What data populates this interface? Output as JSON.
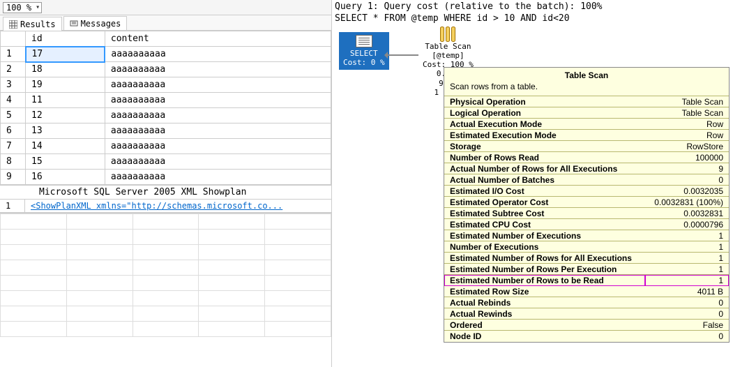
{
  "zoom": {
    "value": "100 %"
  },
  "tabs": {
    "results": "Results",
    "messages": "Messages"
  },
  "columns": [
    "id",
    "content"
  ],
  "rows": [
    {
      "n": "1",
      "id": "17",
      "content": "aaaaaaaaaa"
    },
    {
      "n": "2",
      "id": "18",
      "content": "aaaaaaaaaa"
    },
    {
      "n": "3",
      "id": "19",
      "content": "aaaaaaaaaa"
    },
    {
      "n": "4",
      "id": "11",
      "content": "aaaaaaaaaa"
    },
    {
      "n": "5",
      "id": "12",
      "content": "aaaaaaaaaa"
    },
    {
      "n": "6",
      "id": "13",
      "content": "aaaaaaaaaa"
    },
    {
      "n": "7",
      "id": "14",
      "content": "aaaaaaaaaa"
    },
    {
      "n": "8",
      "id": "15",
      "content": "aaaaaaaaaa"
    },
    {
      "n": "9",
      "id": "16",
      "content": "aaaaaaaaaa"
    }
  ],
  "showplan": {
    "header": "Microsoft SQL Server 2005 XML Showplan",
    "rownum": "1",
    "link": "<ShowPlanXML xmlns=\"http://schemas.microsoft.co..."
  },
  "queryHeader": {
    "line1": "Query 1: Query cost (relative to the batch): 100%",
    "line2": "SELECT * FROM @temp WHERE id > 10 AND id<20"
  },
  "planNodes": {
    "select": {
      "label": "SELECT",
      "cost": "Cost: 0 %"
    },
    "scan": {
      "label": "Table Scan",
      "target": "[@temp]",
      "cost": "Cost: 100 %",
      "s1": "0.02…",
      "s2": "9 o…",
      "s3": "1 (90…"
    }
  },
  "tooltip": {
    "title": "Table Scan",
    "desc": "Scan rows from a table.",
    "props": [
      {
        "k": "Physical Operation",
        "v": "Table Scan"
      },
      {
        "k": "Logical Operation",
        "v": "Table Scan"
      },
      {
        "k": "Actual Execution Mode",
        "v": "Row"
      },
      {
        "k": "Estimated Execution Mode",
        "v": "Row"
      },
      {
        "k": "Storage",
        "v": "RowStore"
      },
      {
        "k": "Number of Rows Read",
        "v": "100000"
      },
      {
        "k": "Actual Number of Rows for All Executions",
        "v": "9"
      },
      {
        "k": "Actual Number of Batches",
        "v": "0"
      },
      {
        "k": "Estimated I/O Cost",
        "v": "0.0032035"
      },
      {
        "k": "Estimated Operator Cost",
        "v": "0.0032831 (100%)"
      },
      {
        "k": "Estimated Subtree Cost",
        "v": "0.0032831"
      },
      {
        "k": "Estimated CPU Cost",
        "v": "0.0000796"
      },
      {
        "k": "Estimated Number of Executions",
        "v": "1"
      },
      {
        "k": "Number of Executions",
        "v": "1"
      },
      {
        "k": "Estimated Number of Rows for All Executions",
        "v": "1"
      },
      {
        "k": "Estimated Number of Rows Per Execution",
        "v": "1"
      },
      {
        "k": "Estimated Number of Rows to be Read",
        "v": "1",
        "hl": true
      },
      {
        "k": "Estimated Row Size",
        "v": "4011 B"
      },
      {
        "k": "Actual Rebinds",
        "v": "0"
      },
      {
        "k": "Actual Rewinds",
        "v": "0"
      },
      {
        "k": "Ordered",
        "v": "False"
      },
      {
        "k": "Node ID",
        "v": "0"
      }
    ]
  },
  "colors": {
    "selectNode": "#1e6fbf",
    "tooltipBg": "#feffe0",
    "highlight": "#d000d0",
    "selectedCell": "#e5f0ff",
    "link": "#0066cc"
  }
}
